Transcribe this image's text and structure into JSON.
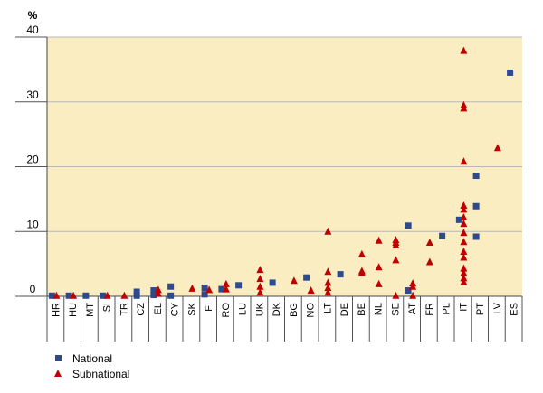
{
  "chart_data": {
    "type": "scatter",
    "title": "",
    "unit_label": "%",
    "xlabel": "",
    "ylabel": "",
    "ylim": [
      0,
      40
    ],
    "yticks": [
      0,
      10,
      20,
      30,
      40
    ],
    "grid": true,
    "legend_position": "bottom-left",
    "colors": {
      "plot_background": "#fbedc2",
      "National": "#2e4a8f",
      "Subnational": "#c00000"
    },
    "categories": [
      "HR",
      "HU",
      "MT",
      "SI",
      "TR",
      "CZ",
      "EL",
      "CY",
      "SK",
      "FI",
      "RO",
      "LU",
      "UK",
      "DK",
      "BG",
      "NO",
      "LT",
      "DE",
      "BE",
      "NL",
      "SE",
      "AT",
      "FR",
      "PL",
      "IT",
      "PT",
      "LV",
      "ES"
    ],
    "series": [
      {
        "name": "National",
        "marker": "square",
        "points": [
          [
            "HR",
            0.1
          ],
          [
            "HU",
            0.1
          ],
          [
            "MT",
            0.1
          ],
          [
            "SI",
            0.1
          ],
          [
            "CZ",
            0.7
          ],
          [
            "CZ",
            0.1
          ],
          [
            "EL",
            0.9
          ],
          [
            "EL",
            0.2
          ],
          [
            "CY",
            1.5
          ],
          [
            "CY",
            0.1
          ],
          [
            "FI",
            1.3
          ],
          [
            "FI",
            0.3
          ],
          [
            "RO",
            1.1
          ],
          [
            "LU",
            1.7
          ],
          [
            "DK",
            2.1
          ],
          [
            "NO",
            2.9
          ],
          [
            "DE",
            3.4
          ],
          [
            "AT",
            10.9
          ],
          [
            "AT",
            0.9
          ],
          [
            "PL",
            9.3
          ],
          [
            "IT",
            11.8
          ],
          [
            "PT",
            18.6
          ],
          [
            "PT",
            13.9
          ],
          [
            "PT",
            9.2
          ],
          [
            "ES",
            34.5
          ]
        ]
      },
      {
        "name": "Subnational",
        "marker": "triangle",
        "points": [
          [
            "HR",
            0.1
          ],
          [
            "HU",
            0.1
          ],
          [
            "SI",
            0.1
          ],
          [
            "TR",
            0.1
          ],
          [
            "EL",
            1.0
          ],
          [
            "EL",
            0.4
          ],
          [
            "SK",
            1.2
          ],
          [
            "FI",
            1.0
          ],
          [
            "RO",
            1.9
          ],
          [
            "RO",
            1.1
          ],
          [
            "UK",
            4.1
          ],
          [
            "UK",
            2.7
          ],
          [
            "UK",
            1.5
          ],
          [
            "UK",
            0.6
          ],
          [
            "BG",
            2.4
          ],
          [
            "NO",
            0.9
          ],
          [
            "LT",
            10.0
          ],
          [
            "LT",
            3.8
          ],
          [
            "LT",
            2.1
          ],
          [
            "LT",
            1.3
          ],
          [
            "LT",
            0.6
          ],
          [
            "BE",
            6.5
          ],
          [
            "BE",
            3.9
          ],
          [
            "BE",
            3.6
          ],
          [
            "NL",
            8.6
          ],
          [
            "NL",
            4.5
          ],
          [
            "NL",
            1.9
          ],
          [
            "SE",
            8.7
          ],
          [
            "SE",
            8.3
          ],
          [
            "SE",
            7.9
          ],
          [
            "SE",
            5.6
          ],
          [
            "SE",
            0.1
          ],
          [
            "AT",
            2.0
          ],
          [
            "AT",
            1.5
          ],
          [
            "AT",
            0.1
          ],
          [
            "FR",
            8.3
          ],
          [
            "FR",
            5.3
          ],
          [
            "IT",
            37.9
          ],
          [
            "IT",
            29.5
          ],
          [
            "IT",
            29.0
          ],
          [
            "IT",
            20.8
          ],
          [
            "IT",
            14.0
          ],
          [
            "IT",
            13.4
          ],
          [
            "IT",
            12.2
          ],
          [
            "IT",
            11.2
          ],
          [
            "IT",
            9.8
          ],
          [
            "IT",
            8.4
          ],
          [
            "IT",
            6.9
          ],
          [
            "IT",
            6.0
          ],
          [
            "IT",
            4.3
          ],
          [
            "IT",
            3.6
          ],
          [
            "IT",
            2.8
          ],
          [
            "IT",
            2.2
          ],
          [
            "LV",
            22.9
          ]
        ]
      }
    ]
  }
}
